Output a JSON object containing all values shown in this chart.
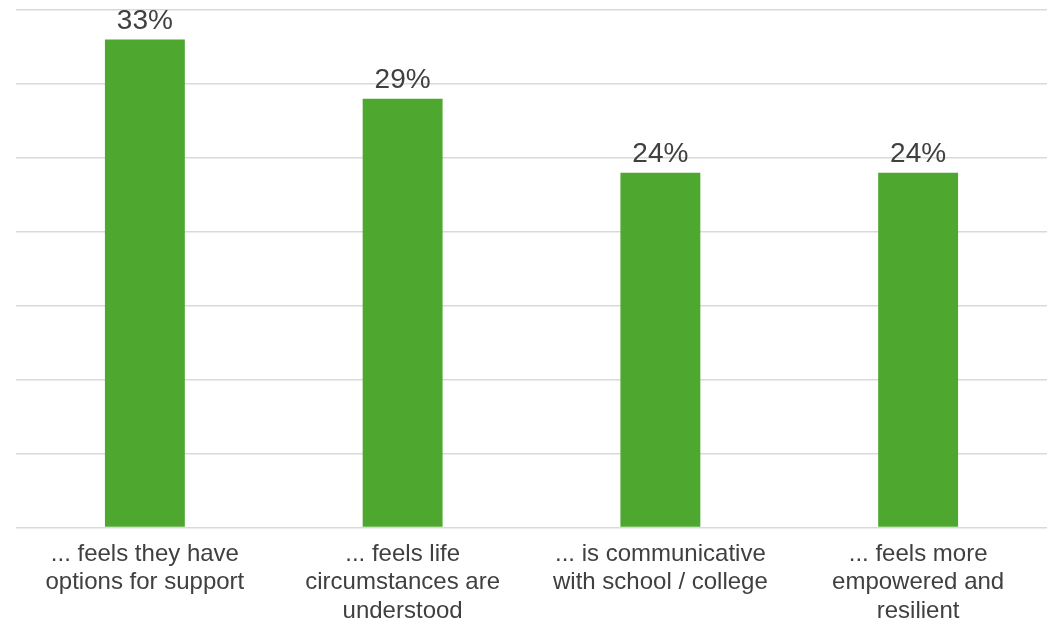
{
  "chart_data": {
    "type": "bar",
    "categories": [
      "... feels they have options for support",
      "... feels life circumstances are understood",
      "... is communicative with school / college",
      "... feels more empowered and resilient"
    ],
    "values": [
      33,
      29,
      24,
      24
    ],
    "color": "#4ea72e",
    "ylim": [
      0,
      35
    ],
    "yticks": [
      {
        "value": 0,
        "label": null
      },
      {
        "value": 5,
        "label": null
      },
      {
        "value": 10,
        "label": null
      },
      {
        "value": 15,
        "label": null
      },
      {
        "value": 20,
        "label": null
      },
      {
        "value": 25,
        "label": null
      },
      {
        "value": 30,
        "label": null
      },
      {
        "value": 35,
        "label": null
      }
    ],
    "grid": "y",
    "tick_labels": "x",
    "data_labels": true,
    "value_labels": [
      "33%",
      "29%",
      "24%",
      "24%"
    ]
  }
}
